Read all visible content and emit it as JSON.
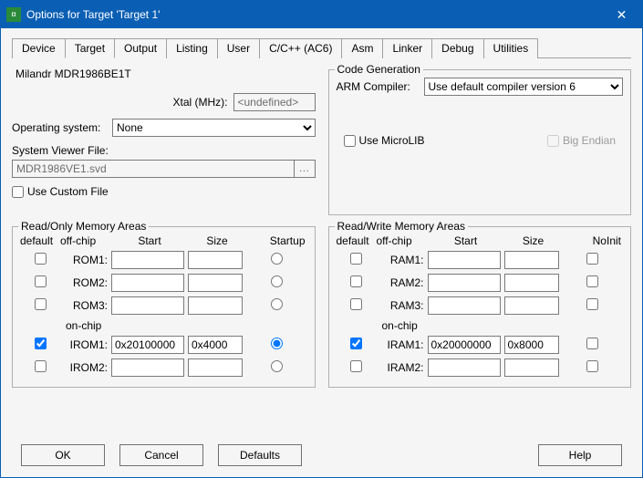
{
  "window": {
    "title": "Options for Target 'Target 1'"
  },
  "tabs": [
    "Device",
    "Target",
    "Output",
    "Listing",
    "User",
    "C/C++ (AC6)",
    "Asm",
    "Linker",
    "Debug",
    "Utilities"
  ],
  "active_tab": 1,
  "device_name": "Milandr MDR1986BE1T",
  "xtal": {
    "label": "Xtal (MHz):",
    "value": "<undefined>"
  },
  "os": {
    "label": "Operating system:",
    "value": "None"
  },
  "svd": {
    "label": "System Viewer File:",
    "value": "MDR1986VE1.svd"
  },
  "use_custom_file": {
    "label": "Use Custom File",
    "checked": false
  },
  "codegen": {
    "legend": "Code Generation",
    "compiler_label": "ARM Compiler:",
    "compiler_value": "Use default compiler version 6",
    "microlib": {
      "label": "Use MicroLIB",
      "checked": false
    },
    "bigendian": {
      "label": "Big Endian",
      "checked": false,
      "enabled": false
    }
  },
  "rom": {
    "legend": "Read/Only Memory Areas",
    "headers": {
      "default": "default",
      "chip": "off-chip",
      "start": "Start",
      "size": "Size",
      "startup": "Startup"
    },
    "onchip": "on-chip",
    "rows": [
      {
        "name": "ROM1:",
        "default": false,
        "start": "",
        "size": "",
        "startup": false
      },
      {
        "name": "ROM2:",
        "default": false,
        "start": "",
        "size": "",
        "startup": false
      },
      {
        "name": "ROM3:",
        "default": false,
        "start": "",
        "size": "",
        "startup": false
      },
      {
        "name": "IROM1:",
        "default": true,
        "start": "0x20100000",
        "size": "0x4000",
        "startup": true
      },
      {
        "name": "IROM2:",
        "default": false,
        "start": "",
        "size": "",
        "startup": false
      }
    ]
  },
  "ram": {
    "legend": "Read/Write Memory Areas",
    "headers": {
      "default": "default",
      "chip": "off-chip",
      "start": "Start",
      "size": "Size",
      "noinit": "NoInit"
    },
    "onchip": "on-chip",
    "rows": [
      {
        "name": "RAM1:",
        "default": false,
        "start": "",
        "size": "",
        "noinit": false
      },
      {
        "name": "RAM2:",
        "default": false,
        "start": "",
        "size": "",
        "noinit": false
      },
      {
        "name": "RAM3:",
        "default": false,
        "start": "",
        "size": "",
        "noinit": false
      },
      {
        "name": "IRAM1:",
        "default": true,
        "start": "0x20000000",
        "size": "0x8000",
        "noinit": false
      },
      {
        "name": "IRAM2:",
        "default": false,
        "start": "",
        "size": "",
        "noinit": false
      }
    ]
  },
  "buttons": {
    "ok": "OK",
    "cancel": "Cancel",
    "defaults": "Defaults",
    "help": "Help"
  },
  "colors": {
    "titlebar": "#0a5fb4",
    "bg": "#f5f5f5",
    "border": "#a0a0a0"
  }
}
